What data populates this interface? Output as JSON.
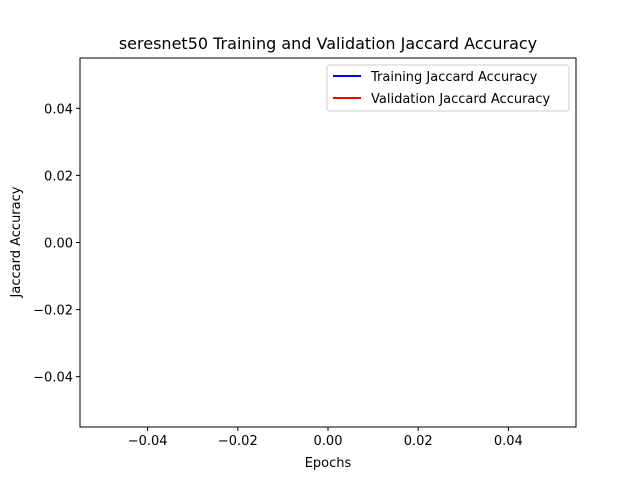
{
  "chart_data": {
    "type": "line",
    "title": "seresnet50 Training and Validation Jaccard Accuracy",
    "xlabel": "Epochs",
    "ylabel": "Jaccard Accuracy",
    "xlim": [
      -0.055,
      0.055
    ],
    "ylim": [
      -0.055,
      0.055
    ],
    "x_ticks": [
      -0.04,
      -0.02,
      0.0,
      0.02,
      0.04
    ],
    "x_tick_labels": [
      "−0.04",
      "−0.02",
      "0.00",
      "0.02",
      "0.04"
    ],
    "y_ticks": [
      -0.04,
      -0.02,
      0.0,
      0.02,
      0.04
    ],
    "y_tick_labels": [
      "−0.04",
      "−0.02",
      "0.00",
      "0.02",
      "0.04"
    ],
    "grid": false,
    "legend_position": "top-right",
    "series": [
      {
        "name": "Training Jaccard Accuracy",
        "color": "#0000ff",
        "x": [],
        "y": []
      },
      {
        "name": "Validation Jaccard Accuracy",
        "color": "#ff0000",
        "x": [],
        "y": []
      }
    ]
  }
}
